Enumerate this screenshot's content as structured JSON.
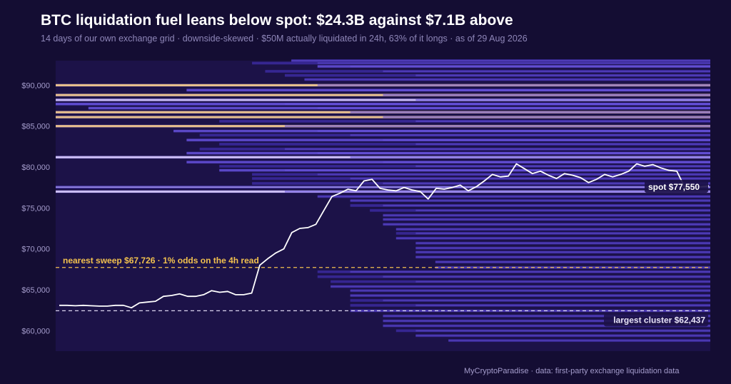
{
  "header": {
    "title": "BTC liquidation fuel leans below spot: $24.3B against $7.1B above",
    "subtitle": "14 days of our own exchange grid · downside-skewed · $50M actually liquidated in 24h, 63% of it longs · as of 29 Aug 2026"
  },
  "footer": {
    "credit": "MyCryptoParadise  ·  data: first-party exchange liquidation data"
  },
  "colors": {
    "background": "#140d33",
    "plot_background": "#1c1248",
    "band_low": "#3b2a9e",
    "band_mid": "#6a55e0",
    "band_high": "#d6c8ff",
    "band_hot": "#f0c88e",
    "price_line": "#ffffff",
    "sweep_line": "#f2c14e",
    "cluster_line": "#d9d4ee"
  },
  "chart_data": {
    "type": "heatmap",
    "description_fields_from_image": true,
    "x_span_days": 14,
    "ylim": [
      57500,
      93000
    ],
    "y_ticks": [
      60000,
      65000,
      70000,
      75000,
      80000,
      85000,
      90000
    ],
    "y_tick_labels": [
      "$60,000",
      "$65,000",
      "$70,000",
      "$75,000",
      "$80,000",
      "$85,000",
      "$90,000"
    ],
    "grid": false,
    "price_series": [
      63100,
      63100,
      63050,
      63100,
      63050,
      63000,
      63000,
      63100,
      63100,
      62800,
      63400,
      63500,
      63600,
      64200,
      64300,
      64500,
      64200,
      64200,
      64400,
      64900,
      64700,
      64800,
      64400,
      64400,
      64600,
      68000,
      68800,
      69500,
      70000,
      72000,
      72500,
      72600,
      73000,
      74700,
      76400,
      76800,
      77300,
      77100,
      78300,
      78500,
      77400,
      77200,
      77100,
      77500,
      77200,
      77000,
      76100,
      77400,
      77300,
      77500,
      77800,
      77100,
      77600,
      78300,
      79100,
      78800,
      78900,
      80400,
      79800,
      79200,
      79500,
      79000,
      78600,
      79200,
      79000,
      78700,
      78100,
      78500,
      79100,
      78800,
      79100,
      79500,
      80400,
      80100,
      80300,
      79900,
      79600,
      79500,
      77500,
      77700,
      77600,
      77700
    ],
    "levels": [
      {
        "price": 93000,
        "intensity": 0.55,
        "start": 0.36
      },
      {
        "price": 92700,
        "intensity": 0.45,
        "start": 0.3
      },
      {
        "price": 92300,
        "intensity": 0.6,
        "start": 0.4
      },
      {
        "price": 91700,
        "intensity": 0.5,
        "start": 0.32
      },
      {
        "price": 91200,
        "intensity": 0.55,
        "start": 0.35
      },
      {
        "price": 90700,
        "intensity": 0.5,
        "start": 0.38
      },
      {
        "price": 90000,
        "intensity": 1.0,
        "start": 0.0,
        "hot": true
      },
      {
        "price": 89400,
        "intensity": 0.7,
        "start": 0.2
      },
      {
        "price": 88800,
        "intensity": 1.0,
        "start": 0.0,
        "hot": true
      },
      {
        "price": 88200,
        "intensity": 0.9,
        "start": 0.0
      },
      {
        "price": 87700,
        "intensity": 0.8,
        "start": 0.0
      },
      {
        "price": 87200,
        "intensity": 0.7,
        "start": 0.05
      },
      {
        "price": 86700,
        "intensity": 1.0,
        "start": 0.0,
        "hot": true
      },
      {
        "price": 86100,
        "intensity": 0.95,
        "start": 0.0,
        "hot": true
      },
      {
        "price": 85600,
        "intensity": 0.55,
        "start": 0.25
      },
      {
        "price": 85000,
        "intensity": 1.0,
        "start": 0.0,
        "hot": true
      },
      {
        "price": 84400,
        "intensity": 0.6,
        "start": 0.18
      },
      {
        "price": 83900,
        "intensity": 0.55,
        "start": 0.22
      },
      {
        "price": 83300,
        "intensity": 0.65,
        "start": 0.2
      },
      {
        "price": 82800,
        "intensity": 0.5,
        "start": 0.25
      },
      {
        "price": 82200,
        "intensity": 0.55,
        "start": 0.22
      },
      {
        "price": 81700,
        "intensity": 0.6,
        "start": 0.2
      },
      {
        "price": 81200,
        "intensity": 0.95,
        "start": 0.0
      },
      {
        "price": 80600,
        "intensity": 0.65,
        "start": 0.2
      },
      {
        "price": 80100,
        "intensity": 0.55,
        "start": 0.25
      },
      {
        "price": 79600,
        "intensity": 0.6,
        "start": 0.25
      },
      {
        "price": 79100,
        "intensity": 0.5,
        "start": 0.3
      },
      {
        "price": 78600,
        "intensity": 0.55,
        "start": 0.3
      },
      {
        "price": 78000,
        "intensity": 0.5,
        "start": 0.3
      },
      {
        "price": 77550,
        "intensity": 0.6,
        "start": 0.0
      },
      {
        "price": 77000,
        "intensity": 0.95,
        "start": 0.0
      },
      {
        "price": 76400,
        "intensity": 0.5,
        "start": 0.4
      },
      {
        "price": 75900,
        "intensity": 0.45,
        "start": 0.45
      },
      {
        "price": 75300,
        "intensity": 0.55,
        "start": 0.45
      },
      {
        "price": 74700,
        "intensity": 0.5,
        "start": 0.48
      },
      {
        "price": 74100,
        "intensity": 0.45,
        "start": 0.5
      },
      {
        "price": 73600,
        "intensity": 0.5,
        "start": 0.5
      },
      {
        "price": 73000,
        "intensity": 0.55,
        "start": 0.5
      },
      {
        "price": 72400,
        "intensity": 0.5,
        "start": 0.52
      },
      {
        "price": 71900,
        "intensity": 0.45,
        "start": 0.52
      },
      {
        "price": 71300,
        "intensity": 0.5,
        "start": 0.52
      },
      {
        "price": 70700,
        "intensity": 0.45,
        "start": 0.55
      },
      {
        "price": 70100,
        "intensity": 0.5,
        "start": 0.55
      },
      {
        "price": 69600,
        "intensity": 0.45,
        "start": 0.55
      },
      {
        "price": 69000,
        "intensity": 0.5,
        "start": 0.55
      },
      {
        "price": 68400,
        "intensity": 0.45,
        "start": 0.58
      },
      {
        "price": 67726,
        "intensity": 0.45,
        "start": 0.58
      },
      {
        "price": 67200,
        "intensity": 0.5,
        "start": 0.4
      },
      {
        "price": 66600,
        "intensity": 0.45,
        "start": 0.4
      },
      {
        "price": 66000,
        "intensity": 0.4,
        "start": 0.42
      },
      {
        "price": 65400,
        "intensity": 0.45,
        "start": 0.42
      },
      {
        "price": 64900,
        "intensity": 0.4,
        "start": 0.45
      },
      {
        "price": 64300,
        "intensity": 0.45,
        "start": 0.45
      },
      {
        "price": 63700,
        "intensity": 0.4,
        "start": 0.45
      },
      {
        "price": 63100,
        "intensity": 0.45,
        "start": 0.45
      },
      {
        "price": 62437,
        "intensity": 0.5,
        "start": 0.45
      },
      {
        "price": 61800,
        "intensity": 0.4,
        "start": 0.5
      },
      {
        "price": 61200,
        "intensity": 0.45,
        "start": 0.5
      },
      {
        "price": 60600,
        "intensity": 0.4,
        "start": 0.5
      },
      {
        "price": 60000,
        "intensity": 0.45,
        "start": 0.52
      },
      {
        "price": 59400,
        "intensity": 0.4,
        "start": 0.55
      },
      {
        "price": 58800,
        "intensity": 0.4,
        "start": 0.6
      }
    ],
    "spot": {
      "price": 77550,
      "label": "spot  $77,550"
    },
    "sweep": {
      "price": 67726,
      "label": "nearest sweep  $67,726  ·  1% odds on the 4h read"
    },
    "cluster": {
      "price": 62437,
      "label": "largest cluster  $62,437"
    }
  }
}
